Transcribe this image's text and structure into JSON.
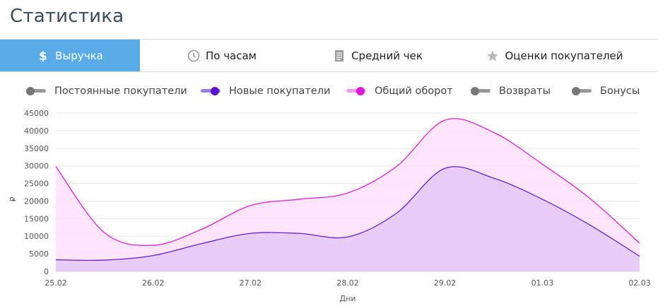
{
  "header": {
    "title": "Статистика"
  },
  "tabs": [
    {
      "label": "Выручка",
      "icon": "dollar-icon",
      "active": true
    },
    {
      "label": "По часам",
      "icon": "clock-icon",
      "active": false
    },
    {
      "label": "Средний чек",
      "icon": "receipt-icon",
      "active": false
    },
    {
      "label": "Оценки покупателей",
      "icon": "star-icon",
      "active": false
    }
  ],
  "legend": [
    {
      "label": "Постоянные покупатели",
      "enabled": false,
      "color": "#888888"
    },
    {
      "label": "Новые покупатели",
      "enabled": true,
      "color": "#6a1fd6"
    },
    {
      "label": "Общий оборот",
      "enabled": true,
      "color": "#e01fd8"
    },
    {
      "label": "Возвраты",
      "enabled": false,
      "color": "#888888"
    },
    {
      "label": "Бонусы",
      "enabled": false,
      "color": "#888888"
    }
  ],
  "chart_data": {
    "type": "area",
    "xlabel": "Дни",
    "ylabel": "₽",
    "ylim": [
      0,
      45000
    ],
    "yticks": [
      0,
      5000,
      10000,
      15000,
      20000,
      25000,
      30000,
      35000,
      40000,
      45000
    ],
    "categories": [
      "25.02",
      "26.02",
      "27.02",
      "28.02",
      "29.02",
      "01.03",
      "02.03"
    ],
    "grid": true,
    "series": [
      {
        "name": "Общий оборот",
        "color": "#e01fd8",
        "fill": "#fde0fa",
        "x": [
          0,
          0.5,
          1,
          1.5,
          2,
          2.5,
          3,
          3.5,
          4,
          4.5,
          5,
          5.5,
          6
        ],
        "values": [
          29800,
          11000,
          7400,
          12000,
          18700,
          20500,
          22300,
          29800,
          43000,
          39500,
          30500,
          20500,
          8000
        ]
      },
      {
        "name": "Новые покупатели",
        "color": "#6a1fd6",
        "fill": "#e4c9f7",
        "x": [
          0,
          0.5,
          1,
          1.5,
          2,
          2.5,
          3,
          3.5,
          4,
          4.5,
          5,
          5.5,
          6
        ],
        "values": [
          3300,
          3200,
          4500,
          7900,
          10800,
          10800,
          9800,
          16500,
          29300,
          26500,
          20500,
          13000,
          4300
        ]
      }
    ]
  }
}
